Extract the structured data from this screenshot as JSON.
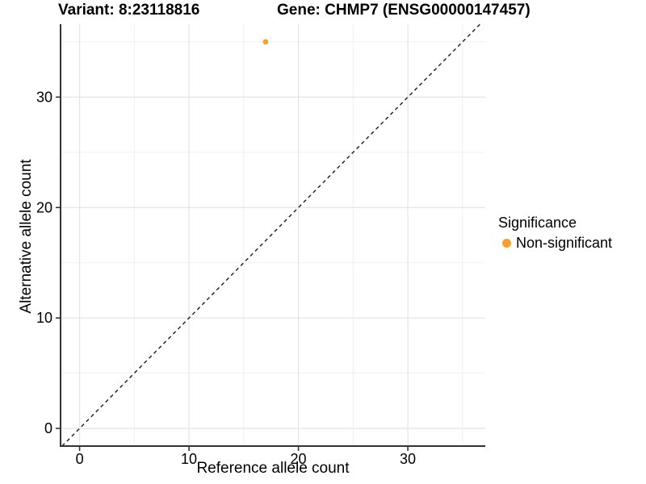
{
  "header": {
    "variant_title": "Variant: 8:23118816",
    "gene_title": "Gene: CHMP7 (ENSG00000147457)"
  },
  "colors": {
    "point": "#F9A02C",
    "grid_major": "#E4E4E4",
    "grid_minor": "#F0F0F0",
    "axis_line": "#333333",
    "tick_mark": "#333333",
    "reference_line": "#1A1A1A",
    "text": "#000000",
    "background": "#FFFFFF"
  },
  "chart_data": {
    "type": "scatter",
    "title_left": "Variant: 8:23118816",
    "title_right": "Gene: CHMP7 (ENSG00000147457)",
    "xlabel": "Reference allele count",
    "ylabel": "Alternative allele count",
    "xlim": [
      -1.74,
      37.08
    ],
    "ylim": [
      -1.6,
      36.6
    ],
    "x_major_ticks": [
      0,
      10,
      20,
      30
    ],
    "x_minor_ticks": [
      5,
      15,
      25,
      35
    ],
    "y_major_ticks": [
      0,
      10,
      20,
      30
    ],
    "y_minor_ticks": [
      5,
      15,
      25,
      35
    ],
    "grid": "major+minor",
    "points": [
      {
        "x": 17,
        "y": 35,
        "series": "Non-significant"
      }
    ],
    "reference_line": {
      "type": "identity",
      "slope": 1,
      "intercept": 0,
      "style": "dashed"
    },
    "legend": {
      "title": "Significance",
      "position": "right",
      "items": [
        {
          "label": "Non-significant",
          "color": "#F9A02C"
        }
      ]
    }
  }
}
